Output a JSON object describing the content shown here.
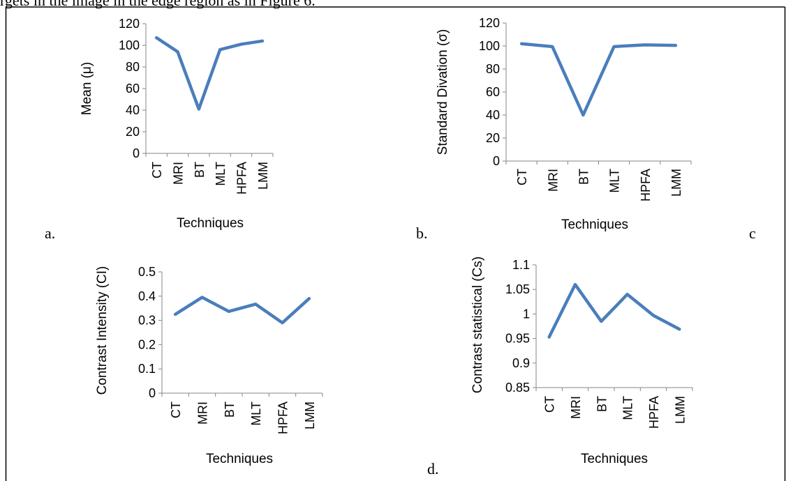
{
  "page": {
    "top_caption": "rgets in the image in the edge region as in Figure 6.",
    "panel_letters": [
      "a.",
      "b.",
      "c",
      "d."
    ]
  },
  "colors": {
    "line": "#4a7ebb",
    "axis": "#868686",
    "text": "#000000"
  },
  "chart_data": [
    {
      "type": "line",
      "categories": [
        "CT",
        "MRI",
        "BT",
        "MLT",
        "HPFA",
        "LMM"
      ],
      "values": [
        107,
        94,
        41,
        96,
        101,
        104
      ],
      "ylabel": "Mean (μ)",
      "xlabel": "Techniques",
      "ylim": [
        0,
        120
      ],
      "yticks": [
        "0",
        "20",
        "40",
        "60",
        "80",
        "100",
        "120"
      ],
      "grid": false
    },
    {
      "type": "line",
      "categories": [
        "CT",
        "MRI",
        "BT",
        "MLT",
        "HPFA",
        "LMM"
      ],
      "values": [
        102,
        99.5,
        40,
        99.5,
        101,
        100.5
      ],
      "ylabel": "Standard Divation (σ)",
      "xlabel": "Techniques",
      "ylim": [
        0,
        120
      ],
      "yticks": [
        "0",
        "20",
        "40",
        "60",
        "80",
        "100",
        "120"
      ],
      "grid": false
    },
    {
      "type": "line",
      "categories": [
        "CT",
        "MRI",
        "BT",
        "MLT",
        "HPFA",
        "LMM"
      ],
      "values": [
        0.325,
        0.395,
        0.337,
        0.367,
        0.29,
        0.39
      ],
      "ylabel": "Contrast Intensity (CI)",
      "xlabel": "Techniques",
      "ylim": [
        0,
        0.5
      ],
      "yticks": [
        "0",
        "0.1",
        "0.2",
        "0.3",
        "0.4",
        "0.5"
      ],
      "grid": false
    },
    {
      "type": "line",
      "categories": [
        "CT",
        "MRI",
        "BT",
        "MLT",
        "HPFA",
        "LMM"
      ],
      "values": [
        0.953,
        1.06,
        0.985,
        1.04,
        0.997,
        0.969
      ],
      "ylabel": "Contrast statistical  (Cs)",
      "xlabel": "Techniques",
      "ylim": [
        0.85,
        1.1
      ],
      "yticks": [
        "0.85",
        "0.9",
        "0.95",
        "1",
        "1.05",
        "1.1"
      ],
      "grid": false
    }
  ]
}
